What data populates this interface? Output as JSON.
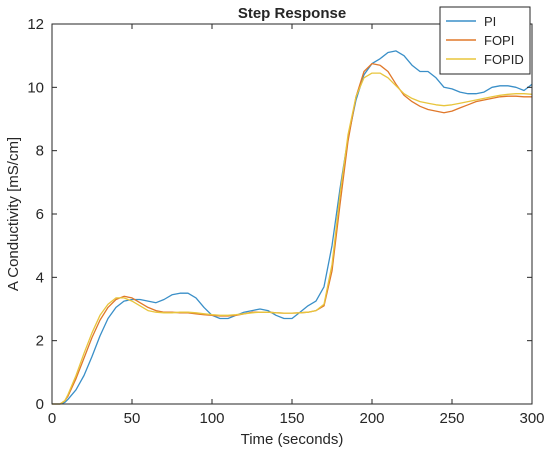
{
  "chart_data": {
    "type": "line",
    "title": "Step Response",
    "xlabel": "Time (seconds)",
    "ylabel": "A Conductivity [mS/cm]",
    "xlim": [
      0,
      300
    ],
    "ylim": [
      0,
      12
    ],
    "xticks": [
      0,
      50,
      100,
      150,
      200,
      250,
      300
    ],
    "yticks": [
      0,
      2,
      4,
      6,
      8,
      10,
      12
    ],
    "grid": false,
    "legend_position": "top-right",
    "series": [
      {
        "name": "PI",
        "color": "#3a8fc8",
        "x": [
          0,
          5,
          8,
          10,
          15,
          20,
          25,
          30,
          35,
          40,
          45,
          50,
          55,
          60,
          65,
          70,
          75,
          80,
          85,
          90,
          95,
          100,
          105,
          110,
          115,
          120,
          125,
          130,
          135,
          140,
          145,
          150,
          155,
          160,
          165,
          170,
          175,
          180,
          185,
          190,
          195,
          200,
          205,
          210,
          215,
          220,
          225,
          230,
          235,
          240,
          245,
          250,
          255,
          260,
          265,
          270,
          275,
          280,
          285,
          290,
          295,
          300
        ],
        "y": [
          0,
          0,
          0.05,
          0.15,
          0.45,
          0.9,
          1.5,
          2.15,
          2.7,
          3.05,
          3.25,
          3.3,
          3.3,
          3.25,
          3.2,
          3.3,
          3.45,
          3.5,
          3.5,
          3.35,
          3.05,
          2.8,
          2.7,
          2.7,
          2.8,
          2.9,
          2.95,
          3.0,
          2.95,
          2.8,
          2.7,
          2.7,
          2.9,
          3.1,
          3.25,
          3.7,
          5.0,
          6.8,
          8.4,
          9.6,
          10.4,
          10.75,
          10.9,
          11.1,
          11.15,
          11.0,
          10.7,
          10.5,
          10.5,
          10.3,
          10.0,
          9.95,
          9.85,
          9.8,
          9.8,
          9.85,
          10.0,
          10.05,
          10.05,
          10.0,
          9.9,
          10.1
        ]
      },
      {
        "name": "FOPI",
        "color": "#e0782a",
        "x": [
          0,
          5,
          8,
          10,
          15,
          20,
          25,
          30,
          35,
          40,
          45,
          50,
          55,
          60,
          65,
          70,
          75,
          80,
          85,
          90,
          95,
          100,
          105,
          110,
          115,
          120,
          125,
          130,
          135,
          140,
          145,
          150,
          155,
          160,
          165,
          170,
          175,
          180,
          185,
          190,
          195,
          200,
          205,
          210,
          215,
          220,
          225,
          230,
          235,
          240,
          245,
          250,
          255,
          260,
          265,
          270,
          275,
          280,
          285,
          290,
          295,
          300
        ],
        "y": [
          0,
          0,
          0.1,
          0.25,
          0.8,
          1.45,
          2.1,
          2.65,
          3.05,
          3.3,
          3.4,
          3.35,
          3.2,
          3.05,
          2.95,
          2.9,
          2.9,
          2.88,
          2.88,
          2.85,
          2.82,
          2.8,
          2.78,
          2.78,
          2.8,
          2.85,
          2.9,
          2.9,
          2.9,
          2.88,
          2.87,
          2.87,
          2.88,
          2.9,
          2.95,
          3.1,
          4.2,
          6.3,
          8.3,
          9.7,
          10.5,
          10.75,
          10.7,
          10.5,
          10.1,
          9.75,
          9.55,
          9.4,
          9.3,
          9.25,
          9.2,
          9.25,
          9.35,
          9.45,
          9.55,
          9.6,
          9.65,
          9.7,
          9.72,
          9.72,
          9.7,
          9.7
        ]
      },
      {
        "name": "FOPID",
        "color": "#e8c53c",
        "x": [
          0,
          5,
          8,
          10,
          15,
          20,
          25,
          30,
          35,
          40,
          45,
          50,
          55,
          60,
          65,
          70,
          75,
          80,
          85,
          90,
          95,
          100,
          105,
          110,
          115,
          120,
          125,
          130,
          135,
          140,
          145,
          150,
          155,
          160,
          165,
          170,
          175,
          180,
          185,
          190,
          195,
          200,
          205,
          210,
          215,
          220,
          225,
          230,
          235,
          240,
          245,
          250,
          255,
          260,
          265,
          270,
          275,
          280,
          285,
          290,
          295,
          300
        ],
        "y": [
          0,
          0,
          0.1,
          0.3,
          0.9,
          1.6,
          2.25,
          2.8,
          3.15,
          3.35,
          3.35,
          3.25,
          3.1,
          2.95,
          2.9,
          2.88,
          2.88,
          2.9,
          2.9,
          2.88,
          2.85,
          2.82,
          2.8,
          2.8,
          2.82,
          2.85,
          2.88,
          2.9,
          2.9,
          2.88,
          2.87,
          2.87,
          2.88,
          2.9,
          2.95,
          3.15,
          4.4,
          6.6,
          8.5,
          9.7,
          10.3,
          10.45,
          10.45,
          10.3,
          10.05,
          9.8,
          9.65,
          9.55,
          9.5,
          9.45,
          9.42,
          9.45,
          9.5,
          9.55,
          9.6,
          9.65,
          9.7,
          9.75,
          9.78,
          9.8,
          9.8,
          9.78
        ]
      }
    ]
  }
}
